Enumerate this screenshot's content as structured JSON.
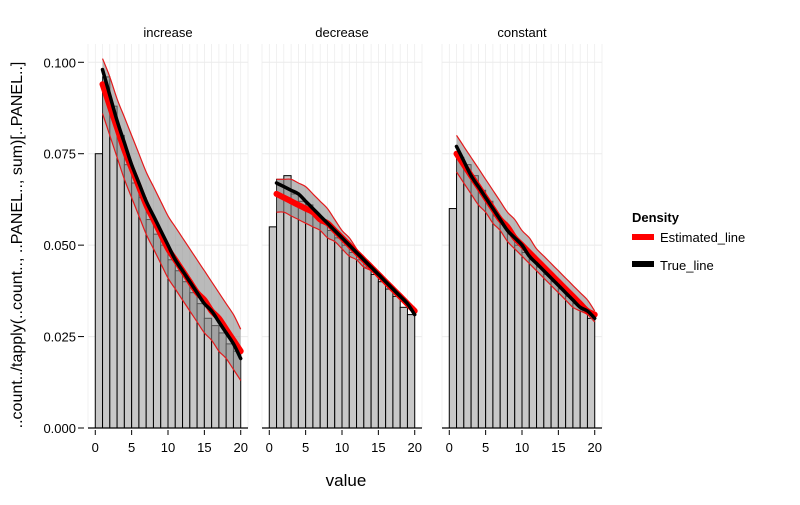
{
  "chart_data": {
    "type": "bar",
    "xlabel": "value",
    "ylabel": "..count../tapply(..count.., ..PANEL.., sum)[..PANEL..]",
    "x_ticks": [
      0,
      5,
      10,
      15,
      20
    ],
    "y_ticks": [
      0.0,
      0.025,
      0.05,
      0.075,
      0.1
    ],
    "y_tick_labels": [
      "0.000",
      "0.025",
      "0.050",
      "0.075",
      "0.100"
    ],
    "xlim": [
      -1,
      21
    ],
    "ylim": [
      0,
      0.105
    ],
    "grid": true,
    "legend": {
      "title": "Density",
      "position": "right",
      "entries": [
        {
          "label": "Estimated_line",
          "color": "#ff0000"
        },
        {
          "label": "True_line",
          "color": "#000000"
        }
      ]
    },
    "colors": {
      "bar_fill": "#c8c8c8",
      "band_fill": "#8c8c8c",
      "band_edge": "#e41a1c",
      "estimated": "#ff0000",
      "true": "#000000",
      "grid": "#ebebeb"
    },
    "bins": [
      0.5,
      1.5,
      2.5,
      3.5,
      4.5,
      5.5,
      6.5,
      7.5,
      8.5,
      9.5,
      10.5,
      11.5,
      12.5,
      13.5,
      14.5,
      15.5,
      16.5,
      17.5,
      18.5,
      19.5
    ],
    "panels": [
      {
        "name": "increase",
        "bars": [
          0.075,
          0.096,
          0.088,
          0.08,
          0.072,
          0.067,
          0.063,
          0.057,
          0.053,
          0.05,
          0.046,
          0.043,
          0.04,
          0.037,
          0.034,
          0.03,
          0.028,
          0.026,
          0.023,
          0.021
        ],
        "true_line": {
          "x": [
            1,
            2,
            3,
            4,
            5,
            6,
            7,
            8,
            9,
            10,
            11,
            12,
            13,
            14,
            15,
            16,
            17,
            18,
            19,
            20
          ],
          "y": [
            0.098,
            0.091,
            0.084,
            0.078,
            0.072,
            0.067,
            0.062,
            0.058,
            0.054,
            0.05,
            0.046,
            0.043,
            0.04,
            0.037,
            0.034,
            0.032,
            0.029,
            0.026,
            0.023,
            0.019
          ]
        },
        "estimated_line": {
          "x": [
            1,
            2,
            3,
            4,
            5,
            6,
            7,
            8,
            9,
            10,
            11,
            12,
            13,
            14,
            15,
            16,
            17,
            18,
            19,
            20
          ],
          "y": [
            0.094,
            0.088,
            0.082,
            0.076,
            0.071,
            0.066,
            0.061,
            0.057,
            0.053,
            0.049,
            0.046,
            0.043,
            0.04,
            0.037,
            0.035,
            0.032,
            0.03,
            0.027,
            0.024,
            0.021
          ]
        },
        "band_upper": [
          0.101,
          0.096,
          0.09,
          0.085,
          0.08,
          0.075,
          0.07,
          0.066,
          0.062,
          0.058,
          0.055,
          0.052,
          0.049,
          0.046,
          0.043,
          0.04,
          0.037,
          0.034,
          0.031,
          0.027
        ],
        "band_lower": [
          0.086,
          0.08,
          0.074,
          0.068,
          0.063,
          0.058,
          0.053,
          0.049,
          0.045,
          0.041,
          0.038,
          0.035,
          0.032,
          0.029,
          0.026,
          0.024,
          0.021,
          0.019,
          0.016,
          0.013
        ]
      },
      {
        "name": "decrease",
        "bars": [
          0.055,
          0.068,
          0.069,
          0.064,
          0.062,
          0.061,
          0.058,
          0.056,
          0.054,
          0.052,
          0.05,
          0.048,
          0.046,
          0.044,
          0.042,
          0.04,
          0.038,
          0.036,
          0.033,
          0.031
        ],
        "true_line": {
          "x": [
            1,
            2,
            3,
            4,
            5,
            6,
            7,
            8,
            9,
            10,
            11,
            12,
            13,
            14,
            15,
            16,
            17,
            18,
            19,
            20
          ],
          "y": [
            0.067,
            0.066,
            0.065,
            0.064,
            0.062,
            0.06,
            0.058,
            0.056,
            0.054,
            0.052,
            0.05,
            0.048,
            0.046,
            0.044,
            0.042,
            0.04,
            0.038,
            0.036,
            0.034,
            0.031
          ]
        },
        "estimated_line": {
          "x": [
            1,
            2,
            3,
            4,
            5,
            6,
            7,
            8,
            9,
            10,
            11,
            12,
            13,
            14,
            15,
            16,
            17,
            18,
            19,
            20
          ],
          "y": [
            0.064,
            0.063,
            0.062,
            0.061,
            0.06,
            0.059,
            0.057,
            0.056,
            0.054,
            0.052,
            0.05,
            0.048,
            0.046,
            0.044,
            0.042,
            0.04,
            0.038,
            0.036,
            0.034,
            0.032
          ]
        },
        "band_upper": [
          0.068,
          0.068,
          0.068,
          0.067,
          0.066,
          0.064,
          0.062,
          0.06,
          0.057,
          0.054,
          0.052,
          0.049,
          0.046,
          0.044,
          0.042,
          0.04,
          0.038,
          0.036,
          0.034,
          0.032
        ],
        "band_lower": [
          0.059,
          0.059,
          0.058,
          0.057,
          0.056,
          0.055,
          0.054,
          0.052,
          0.051,
          0.049,
          0.047,
          0.046,
          0.044,
          0.043,
          0.041,
          0.039,
          0.037,
          0.035,
          0.033,
          0.031
        ]
      },
      {
        "name": "constant",
        "bars": [
          0.06,
          0.074,
          0.072,
          0.069,
          0.065,
          0.062,
          0.058,
          0.056,
          0.053,
          0.05,
          0.048,
          0.046,
          0.044,
          0.042,
          0.04,
          0.038,
          0.036,
          0.034,
          0.032,
          0.03
        ],
        "true_line": {
          "x": [
            1,
            2,
            3,
            4,
            5,
            6,
            7,
            8,
            9,
            10,
            11,
            12,
            13,
            14,
            15,
            16,
            17,
            18,
            19,
            20
          ],
          "y": [
            0.077,
            0.073,
            0.069,
            0.066,
            0.063,
            0.06,
            0.057,
            0.054,
            0.052,
            0.05,
            0.047,
            0.045,
            0.043,
            0.041,
            0.039,
            0.037,
            0.035,
            0.033,
            0.032,
            0.03
          ]
        },
        "estimated_line": {
          "x": [
            1,
            2,
            3,
            4,
            5,
            6,
            7,
            8,
            9,
            10,
            11,
            12,
            13,
            14,
            15,
            16,
            17,
            18,
            19,
            20
          ],
          "y": [
            0.075,
            0.072,
            0.069,
            0.066,
            0.063,
            0.06,
            0.057,
            0.055,
            0.052,
            0.05,
            0.048,
            0.046,
            0.044,
            0.042,
            0.04,
            0.038,
            0.036,
            0.034,
            0.032,
            0.031
          ]
        },
        "band_upper": [
          0.08,
          0.077,
          0.074,
          0.071,
          0.068,
          0.065,
          0.062,
          0.059,
          0.057,
          0.054,
          0.052,
          0.049,
          0.047,
          0.045,
          0.043,
          0.041,
          0.039,
          0.037,
          0.035,
          0.032
        ],
        "band_lower": [
          0.07,
          0.067,
          0.064,
          0.061,
          0.059,
          0.056,
          0.054,
          0.051,
          0.049,
          0.047,
          0.045,
          0.043,
          0.041,
          0.039,
          0.037,
          0.035,
          0.033,
          0.032,
          0.031,
          0.029
        ]
      }
    ]
  }
}
